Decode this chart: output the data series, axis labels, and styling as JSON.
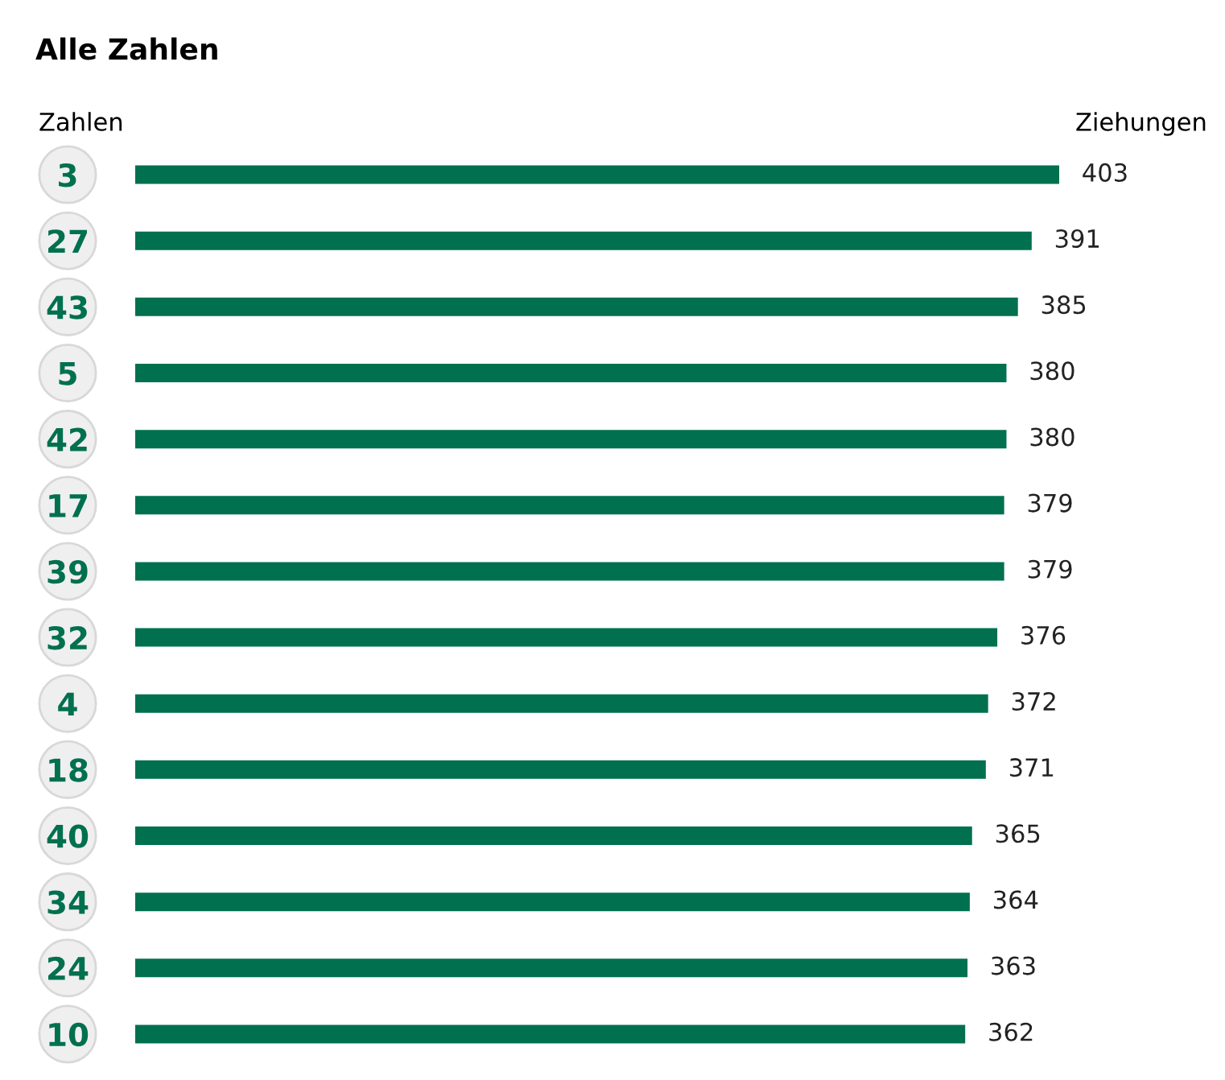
{
  "chart_data": {
    "type": "bar",
    "orientation": "horizontal",
    "title": "Alle Zahlen",
    "ylabel": "Zahlen",
    "annotations": [
      "Ziehungen"
    ],
    "categories": [
      "3",
      "27",
      "43",
      "5",
      "42",
      "17",
      "39",
      "32",
      "4",
      "18",
      "40",
      "34",
      "24",
      "10"
    ],
    "values": [
      403,
      391,
      385,
      380,
      380,
      379,
      379,
      376,
      372,
      371,
      365,
      364,
      363,
      362
    ],
    "color": "#00704f",
    "data_labels": true,
    "grid": false,
    "legend": false,
    "tick_labels": "y"
  }
}
